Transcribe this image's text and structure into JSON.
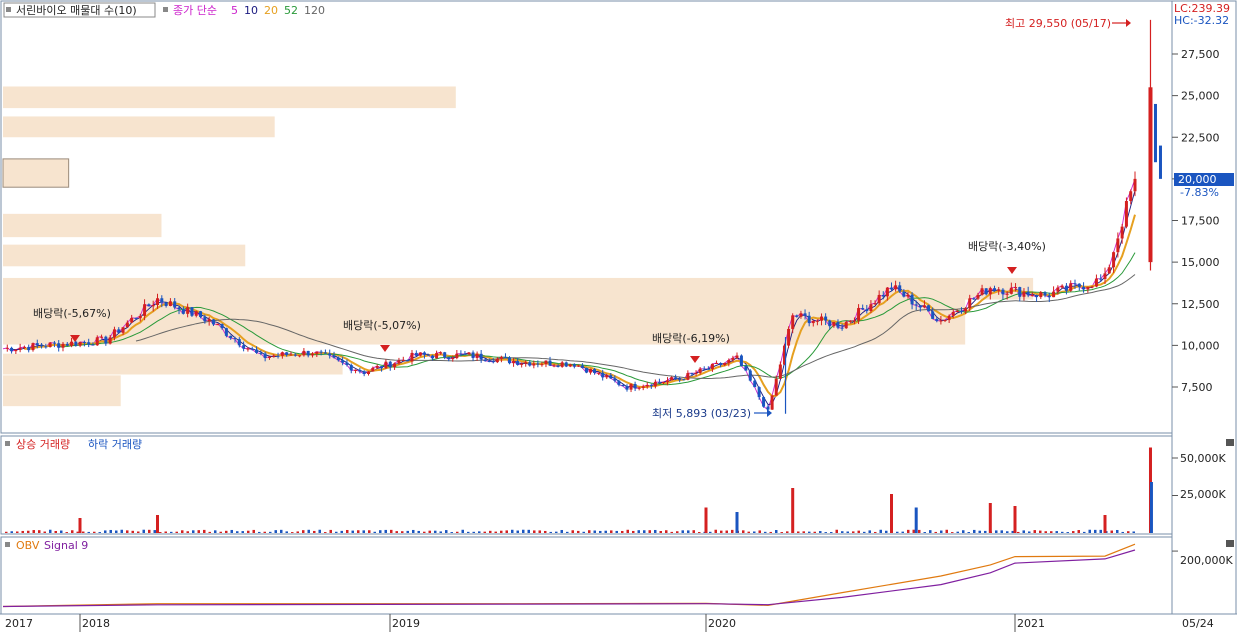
{
  "price_panel": {
    "title": "서린바이오 매물대 수(10)",
    "ma_label": "종가 단순",
    "ma_periods": [
      {
        "period": "5",
        "color": "#cc22cc"
      },
      {
        "period": "10",
        "color": "#1a1a80"
      },
      {
        "period": "20",
        "color": "#e6a020"
      },
      {
        "period": "52",
        "color": "#2a9a3a"
      },
      {
        "period": "120",
        "color": "#666666"
      }
    ],
    "lc_label": "LC:239.39",
    "hc_label": "HC:-32.32",
    "current_price": "20,000",
    "current_change": "-7.83%",
    "high_note": "최고 29,550 (05/17)",
    "low_note": "최저 5,893 (03/23)",
    "dividend_notes": [
      "배당락(-5,67%)",
      "배당락(-5,07%)",
      "배당락(-6,19%)",
      "배당락(-3,40%)"
    ],
    "up_color": "#d42020",
    "down_color": "#1a55c0",
    "volume_profile_color": "#f7e4cf"
  },
  "volume_panel": {
    "legend_up": "상승 거래량",
    "legend_down": "하락 거래량",
    "tick_labels": [
      "50,000K",
      "25,000K"
    ]
  },
  "obv_panel": {
    "legend_obv": "OBV",
    "legend_signal": "Signal 9",
    "obv_color": "#e07a10",
    "signal_color": "#8020a0",
    "tick_labels": [
      "200,000K"
    ]
  },
  "chart_data": {
    "type": "line",
    "title": "서린바이오 매물대 수(10)",
    "price_ylim": [
      5000,
      30000
    ],
    "price_ticks": [
      "27,500",
      "25,000",
      "22,500",
      "20,000",
      "17,500",
      "15,000",
      "12,500",
      "10,000",
      "7,500"
    ],
    "x_ticks": [
      "2017",
      "2018",
      "2019",
      "2020",
      "2021",
      "05/24"
    ],
    "close_series": [
      {
        "date": "2017-12",
        "close": 9800
      },
      {
        "date": "2018-02",
        "close": 10300
      },
      {
        "date": "2018-04",
        "close": 12800
      },
      {
        "date": "2018-06",
        "close": 11500
      },
      {
        "date": "2018-08",
        "close": 9300
      },
      {
        "date": "2018-10",
        "close": 9600
      },
      {
        "date": "2018-12",
        "close": 8400
      },
      {
        "date": "2019-02",
        "close": 9400
      },
      {
        "date": "2019-04",
        "close": 9400
      },
      {
        "date": "2019-06",
        "close": 9000
      },
      {
        "date": "2019-08",
        "close": 8900
      },
      {
        "date": "2019-10",
        "close": 7500
      },
      {
        "date": "2019-12",
        "close": 8000
      },
      {
        "date": "2020-02",
        "close": 9200
      },
      {
        "date": "2020-03",
        "close": 6000
      },
      {
        "date": "2020-04",
        "close": 11800
      },
      {
        "date": "2020-06",
        "close": 11200
      },
      {
        "date": "2020-08",
        "close": 13500
      },
      {
        "date": "2020-10",
        "close": 11500
      },
      {
        "date": "2020-12",
        "close": 13500
      },
      {
        "date": "2021-02",
        "close": 13000
      },
      {
        "date": "2021-04",
        "close": 14000
      },
      {
        "date": "2021-05",
        "close": 20000
      }
    ],
    "high": {
      "date": "05/17",
      "value": 29550
    },
    "low": {
      "date": "03/23",
      "value": 5893
    },
    "current": 20000,
    "volume_profile_bands": [
      {
        "from": 24250,
        "to": 25550,
        "relative": 0.4
      },
      {
        "from": 22500,
        "to": 23750,
        "relative": 0.24
      },
      {
        "from": 19500,
        "to": 21200,
        "relative": 0.058
      },
      {
        "from": 16500,
        "to": 17900,
        "relative": 0.14
      },
      {
        "from": 14750,
        "to": 16050,
        "relative": 0.214
      },
      {
        "from": 12750,
        "to": 14050,
        "relative": 0.91
      },
      {
        "from": 10050,
        "to": 12800,
        "relative": 0.85
      },
      {
        "from": 8250,
        "to": 9500,
        "relative": 0.3
      },
      {
        "from": 6350,
        "to": 8200,
        "relative": 0.104
      }
    ],
    "volume_ylim": [
      0,
      62000
    ],
    "volume_unit": "K",
    "volume_spikes": [
      {
        "date": "2018-01",
        "value": 10000,
        "dir": "up"
      },
      {
        "date": "2018-04",
        "value": 12000,
        "dir": "up"
      },
      {
        "date": "2020-01",
        "value": 17000,
        "dir": "up"
      },
      {
        "date": "2020-02",
        "value": 14000,
        "dir": "down"
      },
      {
        "date": "2020-04",
        "value": 30000,
        "dir": "up"
      },
      {
        "date": "2020-08",
        "value": 26000,
        "dir": "up"
      },
      {
        "date": "2020-09",
        "value": 17000,
        "dir": "down"
      },
      {
        "date": "2020-12",
        "value": 20000,
        "dir": "up"
      },
      {
        "date": "2021-01",
        "value": 18000,
        "dir": "up"
      },
      {
        "date": "2021-04",
        "value": 12000,
        "dir": "up"
      },
      {
        "date": "2021-05-17",
        "value": 57000,
        "dir": "up"
      },
      {
        "date": "2021-05-18",
        "value": 34000,
        "dir": "down"
      }
    ],
    "obv_ylim": [
      -20000,
      240000
    ],
    "obv_series": [
      {
        "date": "2017-12",
        "obv": 0
      },
      {
        "date": "2018-04",
        "obv": 10000
      },
      {
        "date": "2019-06",
        "obv": 10000
      },
      {
        "date": "2020-01",
        "obv": 11000
      },
      {
        "date": "2020-03",
        "obv": 4000
      },
      {
        "date": "2020-06",
        "obv": 50000
      },
      {
        "date": "2020-10",
        "obv": 110000
      },
      {
        "date": "2020-12",
        "obv": 150000
      },
      {
        "date": "2021-01",
        "obv": 180000
      },
      {
        "date": "2021-04",
        "obv": 182000
      },
      {
        "date": "2021-05",
        "obv": 225000
      }
    ]
  }
}
